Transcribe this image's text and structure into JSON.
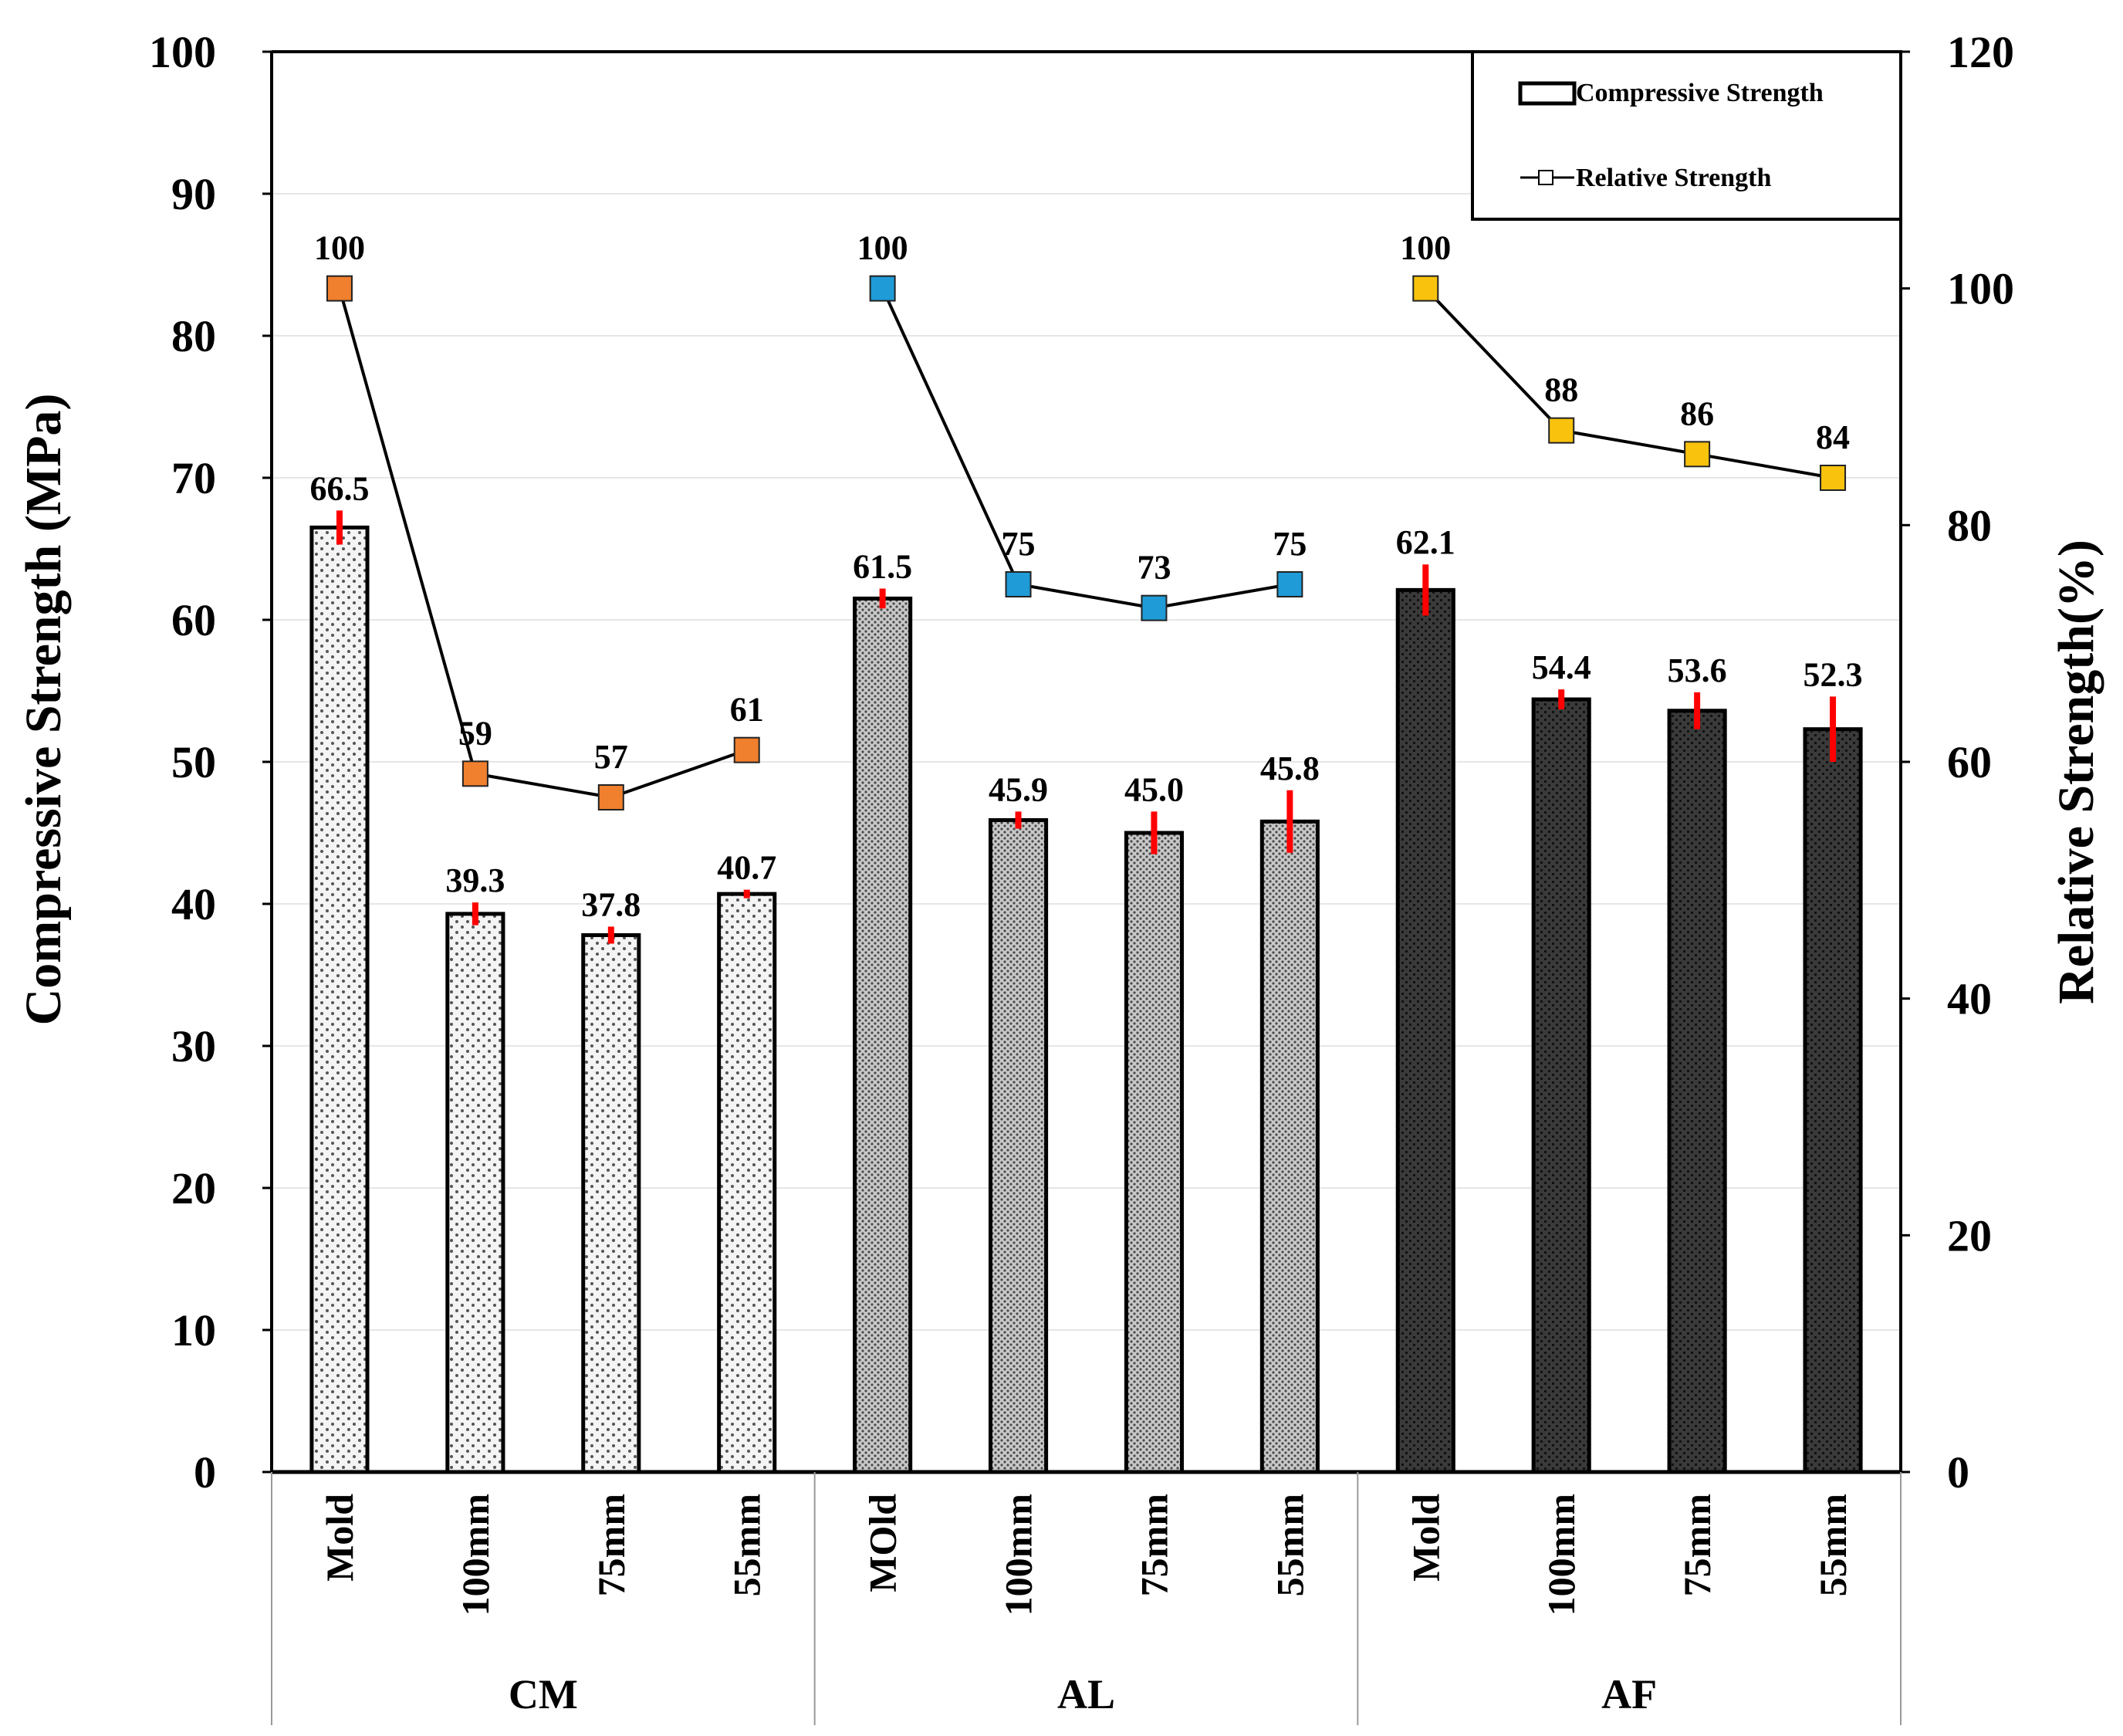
{
  "chart_data": {
    "type": "bar",
    "xlabel": "",
    "ylabel": "Compressive Strength (MPa)",
    "y2label": "Relative Strength(%)",
    "ylim": [
      0,
      100
    ],
    "y2lim": [
      0,
      120
    ],
    "yticks": [
      "0",
      "10",
      "20",
      "30",
      "40",
      "50",
      "60",
      "70",
      "80",
      "90",
      "100"
    ],
    "y2ticks": [
      "0",
      "20",
      "40",
      "60",
      "80",
      "100",
      "120"
    ],
    "grid": true,
    "legend": {
      "position": "top-right",
      "entries": [
        "Compressive Strength",
        "Relative Strength"
      ]
    },
    "groups": [
      {
        "name": "CM",
        "categories": [
          "Mold",
          "100mm",
          "75mm",
          "55mm"
        ],
        "strength": [
          66.5,
          39.3,
          37.8,
          40.7
        ],
        "strength_labels": [
          "66.5",
          "39.3",
          "37.8",
          "40.7"
        ],
        "error": [
          1.2,
          0.8,
          0.6,
          0.3
        ],
        "relative": [
          100,
          59,
          57,
          61
        ],
        "relative_labels": [
          "100",
          "59",
          "57",
          "61"
        ],
        "bar_fill": "#f4f4f4",
        "bar_dot": "#555555",
        "marker_color": "#f07f2e"
      },
      {
        "name": "AL",
        "categories": [
          "MOld",
          "100mm",
          "75mm",
          "55mm"
        ],
        "strength": [
          61.5,
          45.9,
          45.0,
          45.8
        ],
        "strength_labels": [
          "61.5",
          "45.9",
          "45.0",
          "45.8"
        ],
        "error": [
          0.7,
          0.6,
          1.5,
          2.2
        ],
        "relative": [
          100,
          75,
          73,
          75
        ],
        "relative_labels": [
          "100",
          "75",
          "73",
          "75"
        ],
        "bar_fill": "#c8c8c8",
        "bar_dot": "#4a4a4a",
        "marker_color": "#1f9bd7"
      },
      {
        "name": "AF",
        "categories": [
          "Mold",
          "100mm",
          "75mm",
          "55mm"
        ],
        "strength": [
          62.1,
          54.4,
          53.6,
          52.3
        ],
        "strength_labels": [
          "62.1",
          "54.4",
          "53.6",
          "52.3"
        ],
        "error": [
          1.8,
          0.7,
          1.3,
          2.3
        ],
        "relative": [
          100,
          88,
          86,
          84
        ],
        "relative_labels": [
          "100",
          "88",
          "86",
          "84"
        ],
        "bar_fill": "#3a3a3a",
        "bar_dot": "#111111",
        "marker_color": "#f9c20d"
      }
    ],
    "colors": {
      "error_bar": "#ff0000",
      "line": "#000000",
      "grid": "#e6e6e6"
    }
  }
}
